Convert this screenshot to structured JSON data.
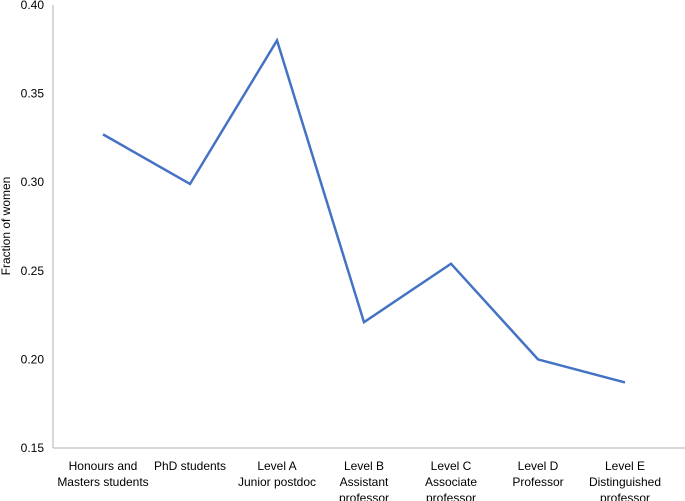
{
  "chart_data": {
    "type": "line",
    "ylabel": "Fraction of women",
    "ylim": [
      0.15,
      0.4
    ],
    "yticks": [
      0.15,
      0.2,
      0.25,
      0.3,
      0.35,
      0.4
    ],
    "ytick_labels": [
      "0.15",
      "0.20",
      "0.25",
      "0.30",
      "0.35",
      "0.40"
    ],
    "categories": [
      [
        "Honours and",
        "Masters students"
      ],
      [
        "PhD students"
      ],
      [
        "Level A",
        "Junior postdoc"
      ],
      [
        "Level B",
        "Assistant",
        "professor"
      ],
      [
        "Level C",
        "Associate",
        "professor"
      ],
      [
        "Level D",
        "Professor"
      ],
      [
        "Level E",
        "Distinguished",
        "professor"
      ]
    ],
    "series": [
      {
        "values": [
          0.327,
          0.299,
          0.38,
          0.221,
          0.254,
          0.2,
          0.187
        ]
      }
    ],
    "line_color": "#4472C4",
    "grid": false
  }
}
